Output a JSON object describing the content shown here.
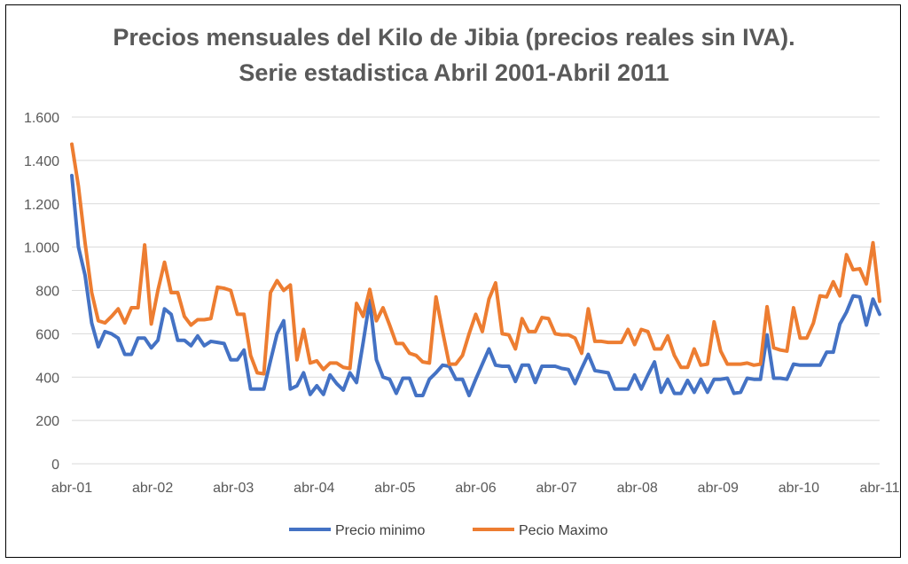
{
  "chart_data": {
    "type": "line",
    "title": [
      "Precios mensuales del Kilo de Jibia (precios reales sin IVA).",
      "Serie estadistica Abril 2001-Abril 2011"
    ],
    "xlabel": "",
    "ylabel": "",
    "ylim": [
      0,
      1600
    ],
    "y_ticks": [
      0,
      200,
      400,
      600,
      800,
      1000,
      1200,
      1400,
      1600
    ],
    "y_tick_labels": [
      "0",
      "200",
      "400",
      "600",
      "800",
      "1.000",
      "1.200",
      "1.400",
      "1.600"
    ],
    "x_tick_labels": [
      "abr-01",
      "abr-02",
      "abr-03",
      "abr-04",
      "abr-05",
      "abr-06",
      "abr-07",
      "abr-08",
      "abr-09",
      "abr-10",
      "abr-11"
    ],
    "grid": true,
    "legend_position": "bottom",
    "series": [
      {
        "name": "Precio minimo",
        "color": "#4472C4",
        "values": [
          1330,
          1000,
          870,
          650,
          540,
          610,
          600,
          580,
          505,
          505,
          580,
          580,
          535,
          570,
          715,
          690,
          570,
          570,
          545,
          590,
          545,
          565,
          560,
          555,
          480,
          480,
          525,
          345,
          345,
          345,
          475,
          600,
          660,
          345,
          360,
          420,
          320,
          360,
          320,
          410,
          370,
          340,
          420,
          375,
          560,
          755,
          480,
          400,
          390,
          325,
          395,
          395,
          315,
          315,
          390,
          420,
          455,
          450,
          390,
          390,
          315,
          390,
          460,
          530,
          455,
          450,
          450,
          380,
          455,
          455,
          375,
          450,
          450,
          450,
          440,
          435,
          370,
          440,
          505,
          430,
          425,
          420,
          345,
          345,
          345,
          410,
          345,
          410,
          470,
          330,
          390,
          325,
          325,
          385,
          330,
          390,
          330,
          390,
          390,
          395,
          325,
          330,
          395,
          390,
          390,
          595,
          395,
          395,
          390,
          460,
          455,
          455,
          455,
          455,
          515,
          515,
          645,
          700,
          775,
          770,
          640,
          760,
          690
        ]
      },
      {
        "name": "Pecio Maximo",
        "color": "#ED7D31",
        "values": [
          1475,
          1280,
          1020,
          790,
          660,
          650,
          680,
          715,
          650,
          720,
          720,
          1010,
          645,
          800,
          930,
          790,
          790,
          680,
          640,
          665,
          665,
          670,
          815,
          810,
          800,
          690,
          690,
          500,
          420,
          415,
          790,
          845,
          800,
          825,
          480,
          620,
          465,
          475,
          435,
          465,
          465,
          445,
          440,
          740,
          680,
          805,
          660,
          720,
          640,
          555,
          555,
          510,
          500,
          470,
          465,
          770,
          610,
          460,
          460,
          500,
          600,
          690,
          610,
          760,
          835,
          600,
          595,
          530,
          670,
          610,
          610,
          675,
          670,
          600,
          595,
          595,
          580,
          510,
          715,
          565,
          565,
          560,
          560,
          560,
          620,
          550,
          620,
          610,
          530,
          530,
          590,
          500,
          445,
          445,
          530,
          455,
          460,
          655,
          520,
          460,
          460,
          460,
          465,
          455,
          460,
          725,
          535,
          525,
          520,
          720,
          580,
          580,
          650,
          775,
          770,
          840,
          775,
          965,
          895,
          900,
          830,
          1020,
          750
        ]
      }
    ]
  }
}
